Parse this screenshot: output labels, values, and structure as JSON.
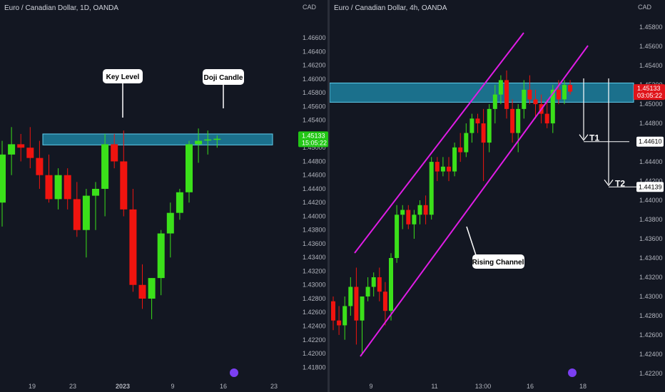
{
  "left_chart": {
    "title": "Euro / Canadian Dollar, 1D, OANDA",
    "currency": "CAD",
    "price_tag": "1.45133",
    "countdown": "15:05:22",
    "x_labels": [
      "19",
      "23",
      "2023",
      "9",
      "16",
      "23"
    ],
    "y_ticks": [
      "1.46600",
      "1.46400",
      "1.46200",
      "1.46000",
      "1.45800",
      "1.45600",
      "1.45400",
      "1.45200",
      "1.45000",
      "1.44800",
      "1.44600",
      "1.44400",
      "1.44200",
      "1.44000",
      "1.43800",
      "1.43600",
      "1.43400",
      "1.43200",
      "1.43000",
      "1.42800",
      "1.42600",
      "1.42400",
      "1.42200",
      "1.42000",
      "1.41800"
    ],
    "annotations": {
      "key_level": "Key Level",
      "doji": "Doji Candle"
    },
    "colors": {
      "up": "#3be01a",
      "down": "#f0140f",
      "zone": "#1f8fb0",
      "background": "#131722"
    }
  },
  "right_chart": {
    "title": "Euro / Canadian Dollar, 4h, OANDA",
    "currency": "CAD",
    "price_tag": "1.45133",
    "countdown": "03:05:22",
    "x_labels": [
      "9",
      "11",
      "13:00",
      "16",
      "18"
    ],
    "y_ticks": [
      "1.45800",
      "1.45600",
      "1.45400",
      "1.45200",
      "1.45000",
      "1.44800",
      "1.44600",
      "1.44400",
      "1.44200",
      "1.44000",
      "1.43800",
      "1.43600",
      "1.43400",
      "1.43200",
      "1.43000",
      "1.42800",
      "1.42600",
      "1.42400",
      "1.42200"
    ],
    "annotations": {
      "channel": "Rising Channel",
      "t1": "T1",
      "t2": "T2"
    },
    "target_tags": {
      "t1": "1.44610",
      "t2": "1.44139"
    },
    "colors": {
      "channel": "#e01ce6",
      "zone": "#1f8fb0"
    }
  },
  "chart_data": [
    {
      "type": "candlestick",
      "title": "Euro / Canadian Dollar, 1D, OANDA",
      "ylim": [
        1.4173,
        1.4682
      ],
      "x_tick_labels": [
        "19",
        "23",
        "2023",
        "9",
        "16",
        "23"
      ],
      "resistance_zone": [
        1.4504,
        1.452
      ],
      "series": [
        {
          "name": "EURCAD 1D",
          "ohlc": [
            [
              1.442,
              1.451,
              1.4385,
              1.449
            ],
            [
              1.449,
              1.453,
              1.446,
              1.4505
            ],
            [
              1.4505,
              1.452,
              1.448,
              1.45
            ],
            [
              1.45,
              1.453,
              1.447,
              1.4485
            ],
            [
              1.4485,
              1.451,
              1.444,
              1.446
            ],
            [
              1.446,
              1.449,
              1.442,
              1.4425
            ],
            [
              1.4425,
              1.447,
              1.441,
              1.446
            ],
            [
              1.446,
              1.447,
              1.441,
              1.4425
            ],
            [
              1.4425,
              1.445,
              1.437,
              1.438
            ],
            [
              1.438,
              1.444,
              1.434,
              1.443
            ],
            [
              1.443,
              1.445,
              1.438,
              1.444
            ],
            [
              1.444,
              1.452,
              1.44,
              1.4505
            ],
            [
              1.4505,
              1.452,
              1.447,
              1.448
            ],
            [
              1.448,
              1.4525,
              1.44,
              1.441
            ],
            [
              1.441,
              1.444,
              1.429,
              1.43
            ],
            [
              1.43,
              1.433,
              1.4265,
              1.428
            ],
            [
              1.428,
              1.431,
              1.425,
              1.431
            ],
            [
              1.431,
              1.438,
              1.4285,
              1.4375
            ],
            [
              1.4375,
              1.442,
              1.434,
              1.4405
            ],
            [
              1.4405,
              1.444,
              1.4395,
              1.4435
            ],
            [
              1.4435,
              1.451,
              1.442,
              1.4505
            ],
            [
              1.4505,
              1.4528,
              1.4478,
              1.451
            ],
            [
              1.4512,
              1.4525,
              1.449,
              1.4512
            ],
            [
              1.4513,
              1.4518,
              1.45,
              1.4513
            ]
          ]
        }
      ]
    },
    {
      "type": "candlestick",
      "title": "Euro / Canadian Dollar, 4h, OANDA",
      "ylim": [
        1.4214,
        1.4592
      ],
      "x_tick_labels": [
        "9",
        "11",
        "13:00",
        "16",
        "18"
      ],
      "resistance_zone": [
        1.4502,
        1.4522
      ],
      "targets": {
        "T1": 1.4461,
        "T2": 1.44139
      },
      "channel": {
        "upper": [
          [
            1.4341,
            1.4574
          ]
        ],
        "lower": [
          [
            1.423,
            1.4548
          ]
        ]
      },
      "series": [
        {
          "name": "EURCAD 4h",
          "ohlc": [
            [
              1.4295,
              1.43,
              1.4265,
              1.4275
            ],
            [
              1.4275,
              1.429,
              1.426,
              1.427
            ],
            [
              1.427,
              1.43,
              1.4255,
              1.429
            ],
            [
              1.429,
              1.432,
              1.428,
              1.431
            ],
            [
              1.431,
              1.433,
              1.425,
              1.4275
            ],
            [
              1.4275,
              1.43,
              1.424,
              1.43
            ],
            [
              1.43,
              1.432,
              1.4295,
              1.431
            ],
            [
              1.431,
              1.4325,
              1.43,
              1.432
            ],
            [
              1.432,
              1.433,
              1.4295,
              1.4305
            ],
            [
              1.4305,
              1.4315,
              1.427,
              1.4285
            ],
            [
              1.4285,
              1.4345,
              1.4275,
              1.434
            ],
            [
              1.434,
              1.4395,
              1.4335,
              1.4385
            ],
            [
              1.4385,
              1.4395,
              1.437,
              1.439
            ],
            [
              1.439,
              1.4395,
              1.437,
              1.4375
            ],
            [
              1.4375,
              1.439,
              1.436,
              1.4385
            ],
            [
              1.4385,
              1.44,
              1.4375,
              1.4395
            ],
            [
              1.4395,
              1.4405,
              1.4375,
              1.4385
            ],
            [
              1.4385,
              1.4445,
              1.438,
              1.444
            ],
            [
              1.444,
              1.4445,
              1.442,
              1.443
            ],
            [
              1.443,
              1.4445,
              1.4425,
              1.4435
            ],
            [
              1.4435,
              1.4445,
              1.442,
              1.443
            ],
            [
              1.443,
              1.446,
              1.4425,
              1.4455
            ],
            [
              1.4455,
              1.447,
              1.444,
              1.445
            ],
            [
              1.445,
              1.448,
              1.4445,
              1.447
            ],
            [
              1.447,
              1.449,
              1.446,
              1.4485
            ],
            [
              1.4485,
              1.449,
              1.447,
              1.448
            ],
            [
              1.448,
              1.4495,
              1.442,
              1.446
            ],
            [
              1.446,
              1.45,
              1.445,
              1.4495
            ],
            [
              1.4495,
              1.452,
              1.448,
              1.451
            ],
            [
              1.451,
              1.453,
              1.45,
              1.4525
            ],
            [
              1.4525,
              1.4535,
              1.4485,
              1.4495
            ],
            [
              1.4495,
              1.4505,
              1.446,
              1.447
            ],
            [
              1.447,
              1.45,
              1.445,
              1.4495
            ],
            [
              1.4495,
              1.4525,
              1.4485,
              1.4515
            ],
            [
              1.4515,
              1.453,
              1.45,
              1.4505
            ],
            [
              1.4505,
              1.4515,
              1.4485,
              1.45
            ],
            [
              1.45,
              1.451,
              1.448,
              1.449
            ],
            [
              1.449,
              1.4505,
              1.4475,
              1.448
            ],
            [
              1.448,
              1.452,
              1.447,
              1.4515
            ],
            [
              1.4515,
              1.4525,
              1.45,
              1.4505
            ],
            [
              1.4505,
              1.4525,
              1.45,
              1.452
            ],
            [
              1.452,
              1.4525,
              1.451,
              1.4513
            ]
          ]
        }
      ]
    }
  ]
}
